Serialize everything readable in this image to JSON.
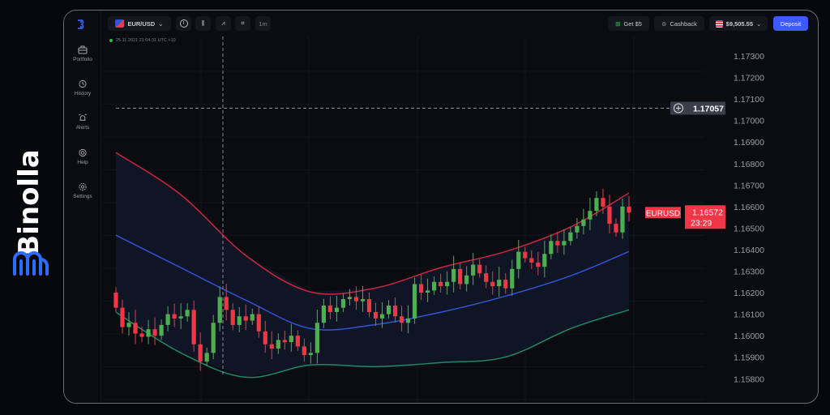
{
  "brand": {
    "name": "Binolla",
    "accent": "#2f6bff"
  },
  "sidebar": {
    "items": [
      {
        "label": "Portfolio",
        "icon": "briefcase-icon"
      },
      {
        "label": "History",
        "icon": "history-icon"
      },
      {
        "label": "Alerts",
        "icon": "alarm-icon"
      },
      {
        "label": "Help",
        "icon": "lifebuoy-icon"
      },
      {
        "label": "Settings",
        "icon": "gear-icon"
      }
    ]
  },
  "toolbar": {
    "pair": "EUR/USD",
    "tools": [
      "info-icon",
      "candles-icon",
      "drawing-icon",
      "crop-icon"
    ],
    "timeframe": "1m",
    "bonus_label": "Get $5",
    "cashback_label": "Cashback",
    "balance": "$9,505.55",
    "deposit_label": "Deposit"
  },
  "timestamp": "25.11.2021  21:04:31  UTC +10",
  "crosshair": {
    "price_label": "1.17057",
    "price": 1.17057
  },
  "current": {
    "symbol": "EURUSD",
    "price_label": "1.16572",
    "timer": "23:29"
  },
  "colors": {
    "up": "#4caf50",
    "down": "#f23645",
    "upper_band": "#c8283c",
    "middle_band": "#2f55d4",
    "lower_band": "#1c8a6a",
    "deposit": "#3d5afe"
  },
  "chart_data": {
    "type": "candlestick",
    "y_ticks": [
      "1.17300",
      "1.17200",
      "1.17100",
      "1.17000",
      "1.16900",
      "1.16800",
      "1.16700",
      "1.16600",
      "1.16500",
      "1.16400",
      "1.16300",
      "1.16200",
      "1.16100",
      "1.16000",
      "1.15900",
      "1.15800"
    ],
    "ylim": [
      1.158,
      1.173
    ],
    "first_open": 1.162,
    "closes": [
      1.1613,
      1.1604,
      1.1606,
      1.1601,
      1.15995,
      1.1603,
      1.16,
      1.1605,
      1.161,
      1.1608,
      1.1609,
      1.1612,
      1.1596,
      1.1588,
      1.1592,
      1.1606,
      1.1618,
      1.1612,
      1.1605,
      1.1609,
      1.1607,
      1.161,
      1.1602,
      1.1596,
      1.1594,
      1.1598,
      1.1597,
      1.16,
      1.1595,
      1.1591,
      1.1592,
      1.1606,
      1.1614,
      1.1611,
      1.1613,
      1.1617,
      1.1618,
      1.1616,
      1.1617,
      1.1611,
      1.1608,
      1.161,
      1.1614,
      1.1609,
      1.1606,
      1.1608,
      1.1624,
      1.162,
      1.1621,
      1.1625,
      1.1623,
      1.1625,
      1.1631,
      1.1624,
      1.1628,
      1.1633,
      1.1629,
      1.1625,
      1.1623,
      1.1626,
      1.1622,
      1.1631,
      1.1639,
      1.1636,
      1.1634,
      1.1632,
      1.1638,
      1.1644,
      1.1642,
      1.1644,
      1.1648,
      1.1651,
      1.1654,
      1.1658,
      1.1664,
      1.166,
      1.1652,
      1.1648,
      1.166,
      1.16572
    ],
    "bands_every_10": {
      "upper": [
        1.16851,
        1.16655,
        1.16373,
        1.16203,
        1.16222,
        1.16316,
        1.16391,
        1.16505,
        1.16663
      ],
      "middle": [
        1.16467,
        1.16316,
        1.16165,
        1.16033,
        1.16052,
        1.16109,
        1.16184,
        1.16278,
        1.16391
      ],
      "lower": [
        1.16109,
        1.1592,
        1.15807,
        1.15864,
        1.15856,
        1.15875,
        1.15901,
        1.16033,
        1.1612
      ]
    }
  }
}
